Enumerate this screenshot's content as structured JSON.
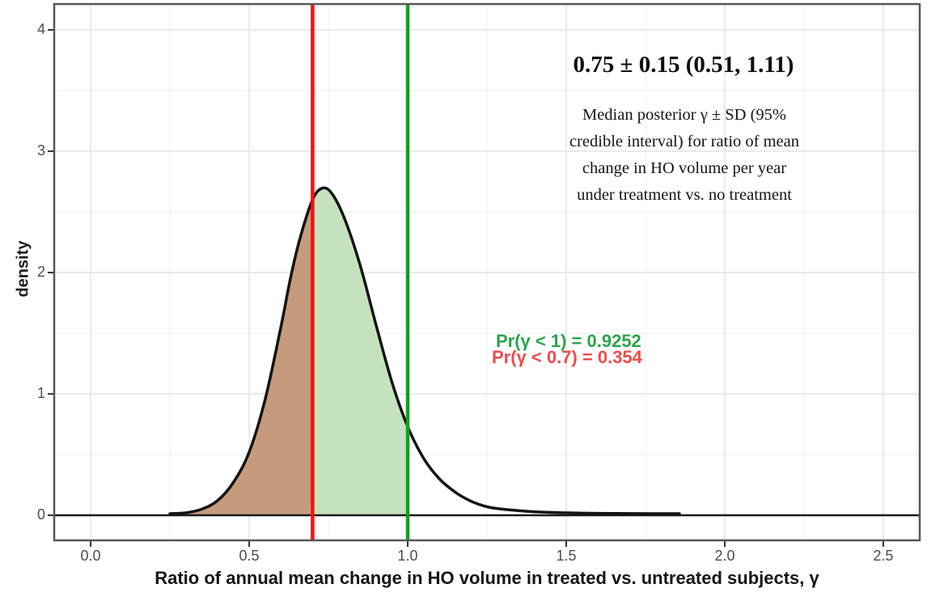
{
  "annotations": {
    "headline": "0.75 ± 0.15 (0.51, 1.11)",
    "description": "Median posterior γ ± SD (95%\ncredible interval) for ratio of mean\nchange in HO volume per year\nunder treatment vs. no treatment",
    "pr_less_1": "Pr(γ < 1) = 0.9252",
    "pr_less_1_color": "#2aa44a",
    "pr_less_07": "Pr(γ < 0.7) = 0.354",
    "pr_less_07_color": "#f24a4a"
  },
  "chart_data": {
    "type": "area",
    "title": "",
    "xlabel": "Ratio of annual mean change in HO volume in treated vs. untreated subjects, γ",
    "ylabel": "density",
    "xlim": [
      -0.115,
      2.615
    ],
    "ylim": [
      -0.207,
      4.213
    ],
    "grid": true,
    "x_ticks": {
      "values": [
        0,
        0.5,
        1.0,
        1.5,
        2.0,
        2.5
      ],
      "labels": [
        "0.0",
        "0.5",
        "1.0",
        "1.5",
        "2.0",
        "2.5"
      ]
    },
    "y_ticks": {
      "values": [
        0,
        1,
        2,
        3,
        4
      ],
      "labels": [
        "0",
        "1",
        "2",
        "3",
        "4"
      ]
    },
    "x_minor": [
      0.25,
      0.75,
      1.25,
      1.75,
      2.25
    ],
    "y_minor": [
      0.5,
      1.5,
      2.5,
      3.5
    ],
    "density_curve": {
      "x": [
        0.25,
        0.3,
        0.35,
        0.4,
        0.45,
        0.5,
        0.55,
        0.6,
        0.63,
        0.66,
        0.7,
        0.73,
        0.76,
        0.8,
        0.85,
        0.9,
        0.95,
        1.0,
        1.05,
        1.1,
        1.15,
        1.2,
        1.25,
        1.3,
        1.4,
        1.5,
        1.6,
        1.7,
        1.857
      ],
      "y": [
        0.013,
        0.02,
        0.05,
        0.12,
        0.27,
        0.52,
        0.95,
        1.55,
        1.95,
        2.28,
        2.6,
        2.695,
        2.655,
        2.45,
        2.06,
        1.57,
        1.1,
        0.73,
        0.47,
        0.3,
        0.19,
        0.115,
        0.07,
        0.05,
        0.028,
        0.02,
        0.016,
        0.014,
        0.013
      ]
    },
    "peak": {
      "x": 0.73,
      "y": 2.7
    },
    "vlines": [
      {
        "x": 0.7,
        "color": "#fb0f0f"
      },
      {
        "x": 1.0,
        "color": "#12a01f"
      }
    ],
    "hline_y": 0,
    "shaded_regions": [
      {
        "from": 0.25,
        "to": 0.7,
        "fill": "#c69b7d"
      },
      {
        "from": 0.7,
        "to": 1.0,
        "fill": "#c5e2bf"
      }
    ],
    "colors": {
      "curve": "#141414",
      "zero_line": "#1a1a1a",
      "panel_border": "#57575b",
      "grid_major": "#e5e5e5",
      "grid_minor": "#f4f4f4",
      "tick": "#333333",
      "tick_label": "#4d4d4d"
    },
    "legend": "none"
  }
}
